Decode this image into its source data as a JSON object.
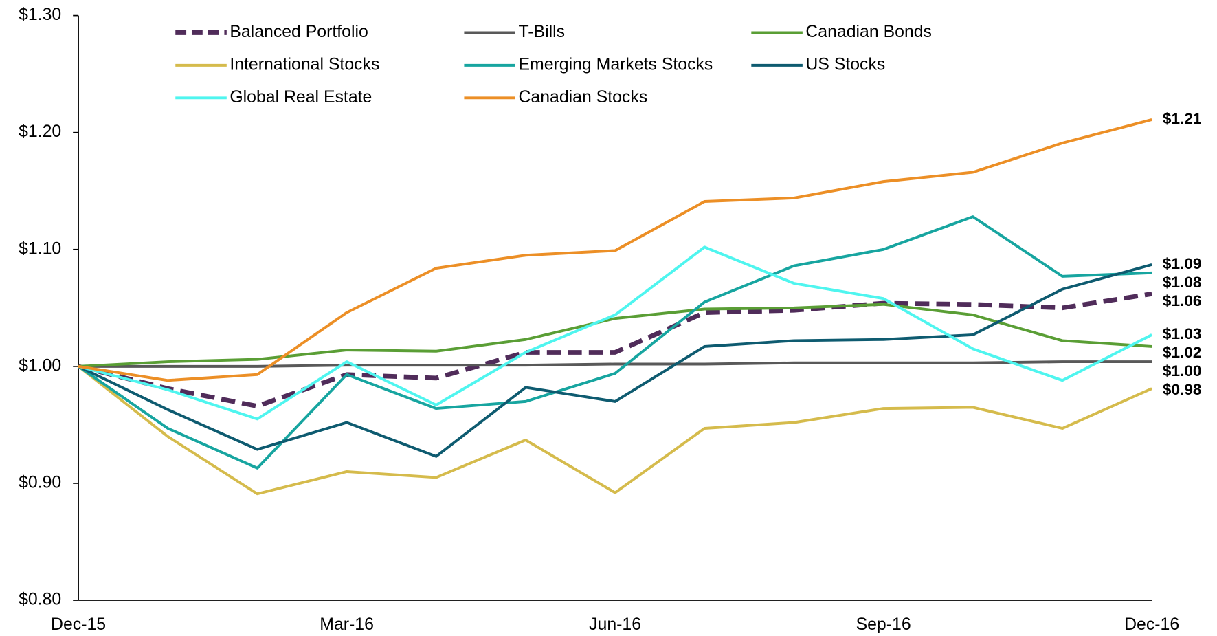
{
  "chart_data": {
    "type": "line",
    "categories": [
      "Dec-15",
      null,
      null,
      "Mar-16",
      null,
      null,
      "Jun-16",
      null,
      null,
      "Sep-16",
      null,
      null,
      "Dec-16"
    ],
    "ylim": [
      0.8,
      1.3
    ],
    "yticks": [
      {
        "value": 0.8,
        "label": "$0.80"
      },
      {
        "value": 0.9,
        "label": "$0.90"
      },
      {
        "value": 1.0,
        "label": "$1.00"
      },
      {
        "value": 1.1,
        "label": "$1.10"
      },
      {
        "value": 1.2,
        "label": "$1.20"
      },
      {
        "value": 1.3,
        "label": "$1.30"
      }
    ],
    "grid": false,
    "legend": "top",
    "series": [
      {
        "name": "Balanced Portfolio",
        "color": "#502c5a",
        "dash": "dashed",
        "values": [
          1.0,
          0.981,
          0.966,
          0.993,
          0.99,
          1.012,
          1.012,
          1.046,
          1.048,
          1.054,
          1.053,
          1.05,
          1.062
        ],
        "value_labels": [
          null,
          null,
          null,
          null,
          null,
          null,
          null,
          null,
          null,
          null,
          null,
          null,
          "$1.06"
        ]
      },
      {
        "name": "T-Bills",
        "color": "#595959",
        "values": [
          1.0,
          1.0,
          1.0,
          1.001,
          1.001,
          1.001,
          1.002,
          1.002,
          1.003,
          1.003,
          1.003,
          1.004,
          1.004
        ],
        "value_labels": [
          null,
          null,
          null,
          null,
          null,
          null,
          null,
          null,
          null,
          null,
          null,
          null,
          "$1.00"
        ]
      },
      {
        "name": "Canadian Bonds",
        "color": "#5a9e35",
        "values": [
          1.0,
          1.004,
          1.006,
          1.014,
          1.013,
          1.023,
          1.041,
          1.049,
          1.05,
          1.053,
          1.044,
          1.022,
          1.017
        ],
        "value_labels": [
          null,
          null,
          null,
          null,
          null,
          null,
          null,
          null,
          null,
          null,
          null,
          null,
          "$1.02"
        ]
      },
      {
        "name": "International Stocks",
        "color": "#d5bb4c",
        "values": [
          1.0,
          0.94,
          0.891,
          0.91,
          0.905,
          0.937,
          0.892,
          0.947,
          0.952,
          0.964,
          0.965,
          0.947,
          0.981
        ],
        "value_labels": [
          null,
          null,
          null,
          null,
          null,
          null,
          null,
          null,
          null,
          null,
          null,
          null,
          "$0.98"
        ]
      },
      {
        "name": "Emerging Markets Stocks",
        "color": "#17a5a0",
        "values": [
          1.0,
          0.947,
          0.913,
          0.993,
          0.964,
          0.97,
          0.994,
          1.055,
          1.086,
          1.1,
          1.128,
          1.077,
          1.08
        ],
        "value_labels": [
          null,
          null,
          null,
          null,
          null,
          null,
          null,
          null,
          null,
          null,
          null,
          null,
          "$1.08"
        ]
      },
      {
        "name": "US Stocks",
        "color": "#0e5b70",
        "values": [
          1.0,
          0.963,
          0.929,
          0.952,
          0.923,
          0.982,
          0.97,
          1.017,
          1.022,
          1.023,
          1.027,
          1.066,
          1.087
        ],
        "value_labels": [
          null,
          null,
          null,
          null,
          null,
          null,
          null,
          null,
          null,
          null,
          null,
          null,
          "$1.09"
        ]
      },
      {
        "name": "Global Real Estate",
        "color": "#4ff5ef",
        "values": [
          1.0,
          0.98,
          0.955,
          1.004,
          0.967,
          1.012,
          1.044,
          1.102,
          1.071,
          1.058,
          1.015,
          0.988,
          1.027
        ],
        "value_labels": [
          null,
          null,
          null,
          null,
          null,
          null,
          null,
          null,
          null,
          null,
          null,
          null,
          "$1.03"
        ]
      },
      {
        "name": "Canadian Stocks",
        "color": "#ec8f26",
        "values": [
          1.0,
          0.988,
          0.993,
          1.046,
          1.084,
          1.095,
          1.099,
          1.141,
          1.144,
          1.158,
          1.166,
          1.191,
          1.211
        ],
        "value_labels": [
          null,
          null,
          null,
          null,
          null,
          null,
          null,
          null,
          null,
          null,
          null,
          null,
          "$1.21"
        ]
      }
    ]
  }
}
